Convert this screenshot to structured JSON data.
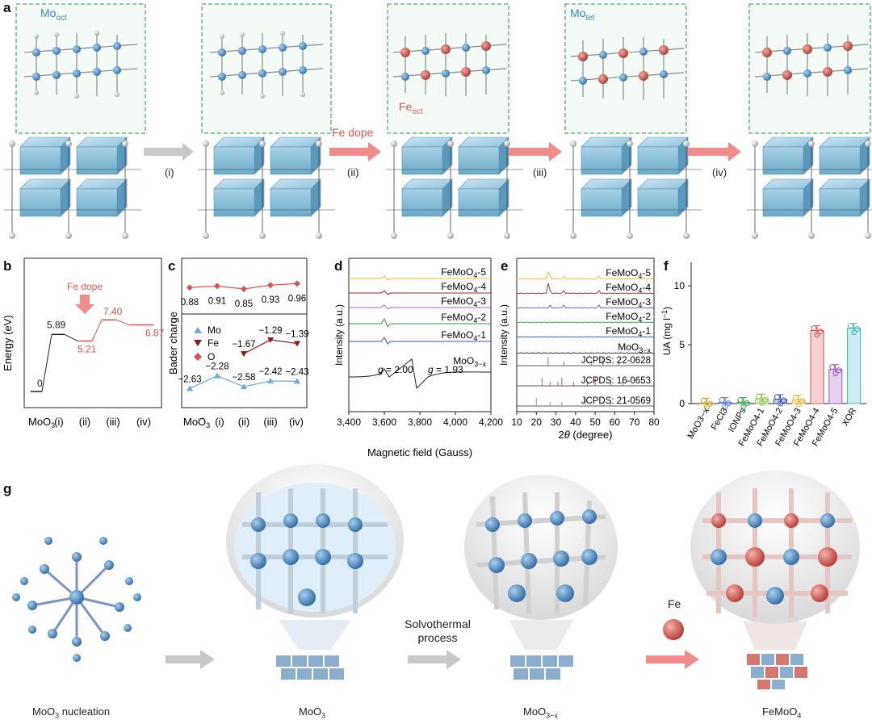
{
  "panel_a": {
    "label": "a",
    "labels": {
      "mo_oct": "Mo",
      "mo_oct_sub": "oct",
      "mo_tet": "Mo",
      "mo_tet_sub": "tet",
      "fe_oct": "Fe",
      "fe_oct_sub": "oct"
    },
    "steps": [
      "(i)",
      "(ii)",
      "(iii)",
      "(iv)"
    ],
    "fe_dope": "Fe dope"
  },
  "panel_b": {
    "label": "b",
    "chart_data": {
      "type": "line",
      "ylabel": "Energy (eV)",
      "categories": [
        "MoO3",
        "(i)",
        "(ii)",
        "(iii)",
        "(iv)"
      ],
      "category_labels": [
        "MoO",
        "3",
        "(i)",
        "(ii)",
        "(iii)",
        "(iv)"
      ],
      "values": [
        0,
        5.89,
        5.21,
        7.4,
        6.87
      ],
      "value_labels": [
        "0",
        "5.89",
        "5.21",
        "7.40",
        "6.87"
      ],
      "annotation": "Fe dope",
      "colors": {
        "undoped": "#222222",
        "doped": "#e05050"
      }
    }
  },
  "panel_c": {
    "label": "c",
    "chart_data": {
      "type": "line",
      "ylabel": "Bader charge",
      "categories": [
        "MoO3",
        "(i)",
        "(ii)",
        "(iii)",
        "(iv)"
      ],
      "series": [
        {
          "name": "O",
          "x": [
            0,
            1,
            2,
            3,
            4
          ],
          "values": [
            0.88,
            0.91,
            0.85,
            0.93,
            0.96
          ],
          "labels": [
            "0.88",
            "0.91",
            "0.85",
            "0.93",
            "0.96"
          ],
          "color": "#d9534f"
        },
        {
          "name": "Fe",
          "x": [
            2,
            3,
            4
          ],
          "values": [
            -1.67,
            -1.29,
            -1.39
          ],
          "labels": [
            "−1.67",
            "−1.29",
            "−1.39"
          ],
          "color": "#8b1a1a"
        },
        {
          "name": "Mo",
          "x": [
            0,
            1,
            2,
            3,
            4
          ],
          "values": [
            -2.63,
            -2.28,
            -2.58,
            -2.42,
            -2.43
          ],
          "labels": [
            "−2.63",
            "−2.28",
            "−2.58",
            "−2.42",
            "−2.43"
          ],
          "color": "#6fa8dc"
        }
      ],
      "legend": [
        "Mo",
        "Fe",
        "O"
      ]
    }
  },
  "panel_d": {
    "label": "d",
    "chart_data": {
      "type": "line",
      "xlabel": "Magnetic field (Gauss)",
      "ylabel": "Intensity (a.u.)",
      "xlim": [
        3400,
        4200
      ],
      "xticks": [
        "3,400",
        "3,600",
        "3,800",
        "4,000",
        "4,200"
      ],
      "series": [
        {
          "name": "FeMoO4-5",
          "color": "#e8b83a"
        },
        {
          "name": "FeMoO4-4",
          "color": "#8b2a2a"
        },
        {
          "name": "FeMoO4-3",
          "color": "#b35fc9"
        },
        {
          "name": "FeMoO4-2",
          "color": "#2e9a3a"
        },
        {
          "name": "FeMoO4-1",
          "color": "#3050c0"
        },
        {
          "name": "MoO3−x",
          "color": "#222222"
        }
      ],
      "annotations": [
        "g = 2.00",
        "g = 1.93"
      ],
      "series_labels": [
        {
          "t": "FeMoO",
          "s": "4",
          "e": "-5"
        },
        {
          "t": "FeMoO",
          "s": "4",
          "e": "-4"
        },
        {
          "t": "FeMoO",
          "s": "4",
          "e": "-3"
        },
        {
          "t": "FeMoO",
          "s": "4",
          "e": "-2"
        },
        {
          "t": "FeMoO",
          "s": "4",
          "e": "-1"
        },
        {
          "t": "MoO",
          "s": "3−x",
          "e": ""
        }
      ]
    }
  },
  "panel_e": {
    "label": "e",
    "chart_data": {
      "type": "line",
      "xlabel": "2θ (degree)",
      "ylabel": "Intensity (a.u.)",
      "xlim": [
        10,
        80
      ],
      "xticks": [
        "10",
        "20",
        "30",
        "40",
        "50",
        "60",
        "70",
        "80"
      ],
      "series": [
        {
          "name": "FeMoO4-5",
          "color": "#e8b83a"
        },
        {
          "name": "FeMoO4-4",
          "color": "#8b2a2a"
        },
        {
          "name": "FeMoO4-3",
          "color": "#6a4ab0"
        },
        {
          "name": "FeMoO4-2",
          "color": "#2e9a3a"
        },
        {
          "name": "FeMoO4-1",
          "color": "#3050c0"
        },
        {
          "name": "MoO3−x",
          "color": "#222222"
        }
      ],
      "references": [
        "JCPDS: 22-0628",
        "JCPDS: 16-0653",
        "JCPDS: 21-0569"
      ],
      "series_labels": [
        {
          "t": "FeMoO",
          "s": "4",
          "e": "-5"
        },
        {
          "t": "FeMoO",
          "s": "4",
          "e": "-4"
        },
        {
          "t": "FeMoO",
          "s": "4",
          "e": "-3"
        },
        {
          "t": "FeMoO",
          "s": "4",
          "e": "-2"
        },
        {
          "t": "FeMoO",
          "s": "4",
          "e": "-1"
        },
        {
          "t": "MoO",
          "s": "3−x",
          "e": ""
        }
      ]
    }
  },
  "panel_f": {
    "label": "f",
    "chart_data": {
      "type": "bar",
      "ylabel": "UA (mg l",
      "ylabel_sup": "−1",
      "ylim": [
        0,
        12
      ],
      "yticks": [
        "0",
        "5",
        "10"
      ],
      "categories": [
        "MoO3−x",
        "FeCl3",
        "IONPs",
        "FeMoO4-1",
        "FeMoO4-2",
        "FeMoO4-3",
        "FeMoO4-4",
        "FeMoO4-5",
        "XOR"
      ],
      "values": [
        0.05,
        0.1,
        0.1,
        0.4,
        0.35,
        0.3,
        6.2,
        2.9,
        6.4
      ],
      "colors": [
        "#c9a227",
        "#5b7bd5",
        "#3aa657",
        "#8bc34a",
        "#3f51b5",
        "#e8b83a",
        "#d9534f",
        "#9c4fbf",
        "#3bb3c3"
      ]
    }
  },
  "panel_g": {
    "label": "g",
    "stages": [
      "MoO3 nucleation",
      "MoO3",
      "MoO3−x",
      "FeMoO4"
    ],
    "stage_labels": [
      {
        "t": "MoO",
        "s": "3",
        "e": " nucleation"
      },
      {
        "t": "MoO",
        "s": "3",
        "e": ""
      },
      {
        "t": "MoO",
        "s": "3−x",
        "e": ""
      },
      {
        "t": "FeMoO",
        "s": "4",
        "e": ""
      }
    ],
    "process_line1": "Solvothermal",
    "process_line2": "process",
    "fe_label": "Fe"
  }
}
